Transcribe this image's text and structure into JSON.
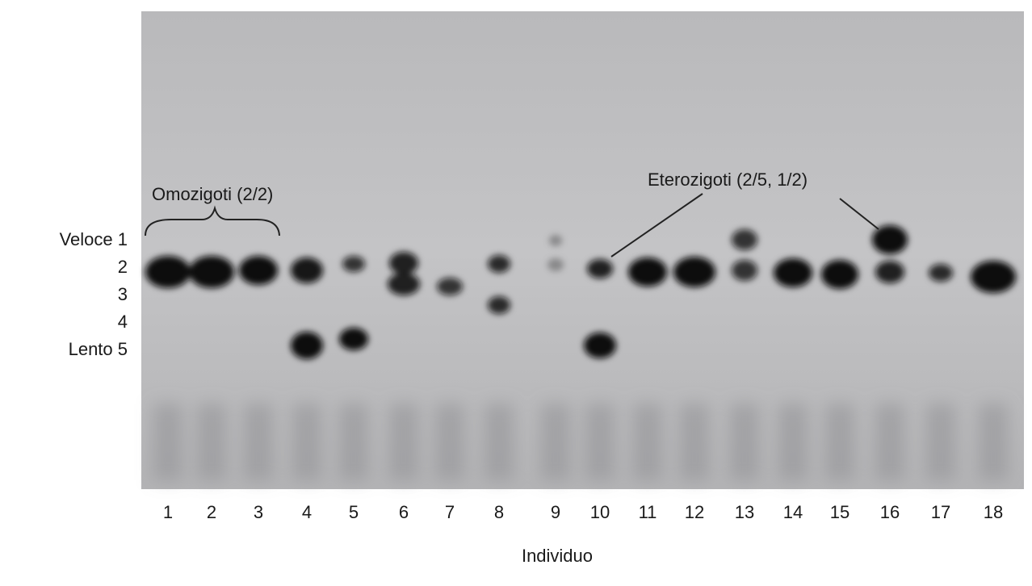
{
  "gel": {
    "row_labels": [
      "Veloce 1",
      "2",
      "3",
      "4",
      "Lento 5"
    ],
    "annotations": {
      "homozygous": "Omozigoti (2/2)",
      "heterozygous": "Eterozigoti (2/5, 1/2)"
    },
    "lanes": [
      "1",
      "2",
      "3",
      "4",
      "5",
      "6",
      "7",
      "8",
      "9",
      "10",
      "11",
      "12",
      "13",
      "14",
      "15",
      "16",
      "17",
      "18"
    ],
    "x_axis_label": "Individuo"
  }
}
